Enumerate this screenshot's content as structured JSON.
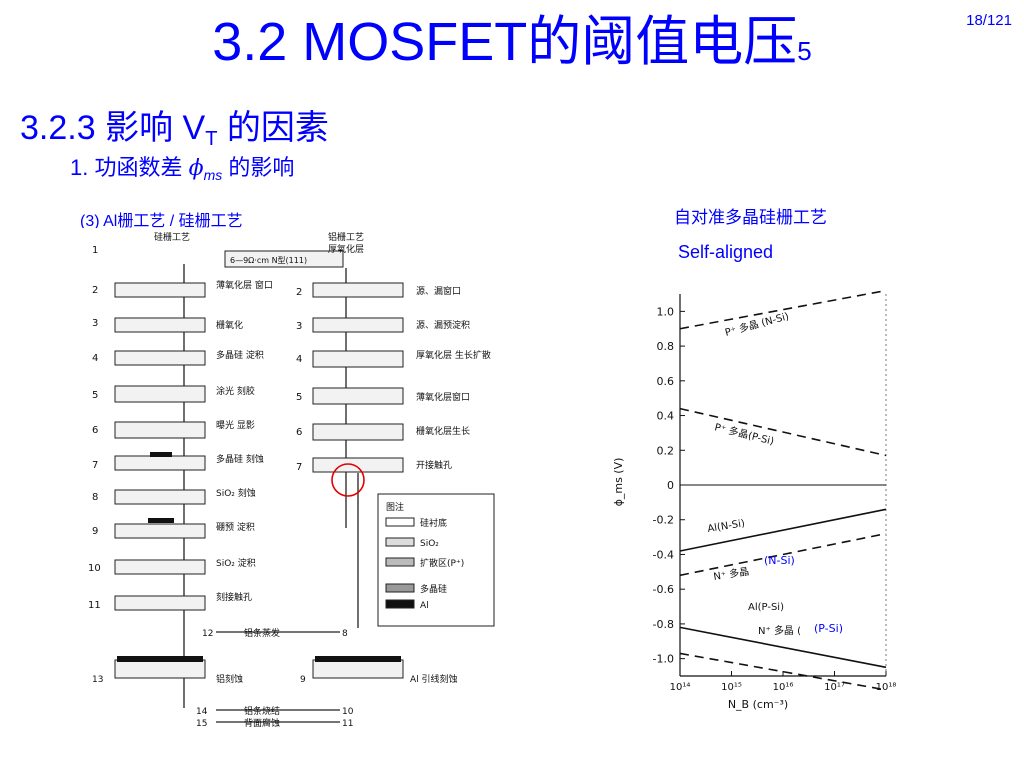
{
  "header": {
    "title": "3.2  MOSFET的阈值电压",
    "title_suffix": "5",
    "page": "18/121"
  },
  "section": {
    "prefix": "3.2.3  影响 V",
    "sub": "T",
    "suffix": " 的因素"
  },
  "subsection": {
    "prefix": "1. 功函数差 ",
    "phi": "ϕ",
    "sub": "ms",
    "suffix": " 的影响"
  },
  "item3": "(3) Al栅工艺 / 硅栅工艺",
  "self_aligned": {
    "cn": "自对准多晶硅栅工艺",
    "en": "Self-aligned"
  },
  "process_figure": {
    "left_title": "硅栅工艺",
    "right_title_1": "铝栅工艺",
    "right_title_2": "厚氧化层",
    "substrate_label": "6—9Ω·cm N型(111)",
    "left_steps": [
      {
        "n": "1",
        "label": ""
      },
      {
        "n": "2",
        "label": "薄氧化层\n窗口"
      },
      {
        "n": "3",
        "label": "栅氧化"
      },
      {
        "n": "4",
        "label": "多晶硅\n淀积"
      },
      {
        "n": "5",
        "label": "涂光\n刻胶"
      },
      {
        "n": "6",
        "label": "曝光\n显影"
      },
      {
        "n": "7",
        "label": "多晶硅\n刻蚀"
      },
      {
        "n": "8",
        "label": "SiO₂\n刻蚀"
      },
      {
        "n": "9",
        "label": "硼预\n淀积"
      },
      {
        "n": "10",
        "label": "SiO₂\n淀积"
      },
      {
        "n": "11",
        "label": "刻接触孔"
      }
    ],
    "right_steps": [
      {
        "n": "2",
        "label": "源、漏窗口"
      },
      {
        "n": "3",
        "label": "源、漏预淀积"
      },
      {
        "n": "4",
        "label": "厚氧化层\n生长扩散"
      },
      {
        "n": "5",
        "label": "薄氧化层窗口"
      },
      {
        "n": "6",
        "label": "栅氧化层生长"
      },
      {
        "n": "7",
        "label": "开接触孔"
      }
    ],
    "bottom": {
      "step12": "12",
      "al_evap": "铝条蒸发",
      "step8": "8",
      "step13": "13",
      "al_etch": "铝刻蚀",
      "step9": "9",
      "al_lead": "Al 引线刻蚀",
      "step14": "14",
      "sinter": "铝条烧结",
      "step10": "10",
      "step15": "15",
      "back": "背面腐蚀",
      "step11": "11"
    },
    "legend": {
      "title": "图注",
      "items": [
        "硅衬底",
        "SiO₂",
        "扩散区(P⁺)",
        "多晶硅",
        "Al"
      ]
    }
  },
  "chart_data": {
    "type": "line",
    "xlabel": "N_B (cm⁻³)",
    "ylabel": "ϕ_ms (V)",
    "x_scale": "log",
    "xlim": [
      100000000000000.0,
      1e+18
    ],
    "ylim": [
      -1.1,
      1.1
    ],
    "x_ticks": [
      "10¹⁴",
      "10¹⁵",
      "10¹⁶",
      "10¹⁷",
      "10¹⁸"
    ],
    "y_ticks": [
      "1.0",
      "0.8",
      "0.6",
      "0.4",
      "0.2",
      "0",
      "-0.2",
      "-0.4",
      "-0.6",
      "-0.8",
      "-1.0"
    ],
    "series": [
      {
        "name": "P⁺ 多晶 (N-Si)",
        "style": "dashed",
        "x": [
          100000000000000.0,
          1e+18
        ],
        "y": [
          0.9,
          1.12
        ]
      },
      {
        "name": "P⁺ 多晶(P-Si)",
        "style": "dashed",
        "x": [
          100000000000000.0,
          1e+18
        ],
        "y": [
          0.44,
          0.17
        ]
      },
      {
        "name": "Al(N-Si)",
        "style": "solid",
        "x": [
          100000000000000.0,
          1e+18
        ],
        "y": [
          -0.38,
          -0.14
        ]
      },
      {
        "name": "N⁺ 多晶",
        "style": "dashed",
        "x": [
          100000000000000.0,
          1e+18
        ],
        "y": [
          -0.52,
          -0.28
        ]
      },
      {
        "name": "Al(P-Si)",
        "style": "solid",
        "x": [
          100000000000000.0,
          1e+18
        ],
        "y": [
          -0.82,
          -1.05
        ]
      },
      {
        "name": "N⁺ 多晶 (",
        "style": "dashed",
        "x": [
          100000000000000.0,
          1e+18
        ],
        "y": [
          -0.97,
          -1.18
        ]
      }
    ],
    "annotations": [
      "(N-Si)",
      "(P-Si)"
    ]
  }
}
